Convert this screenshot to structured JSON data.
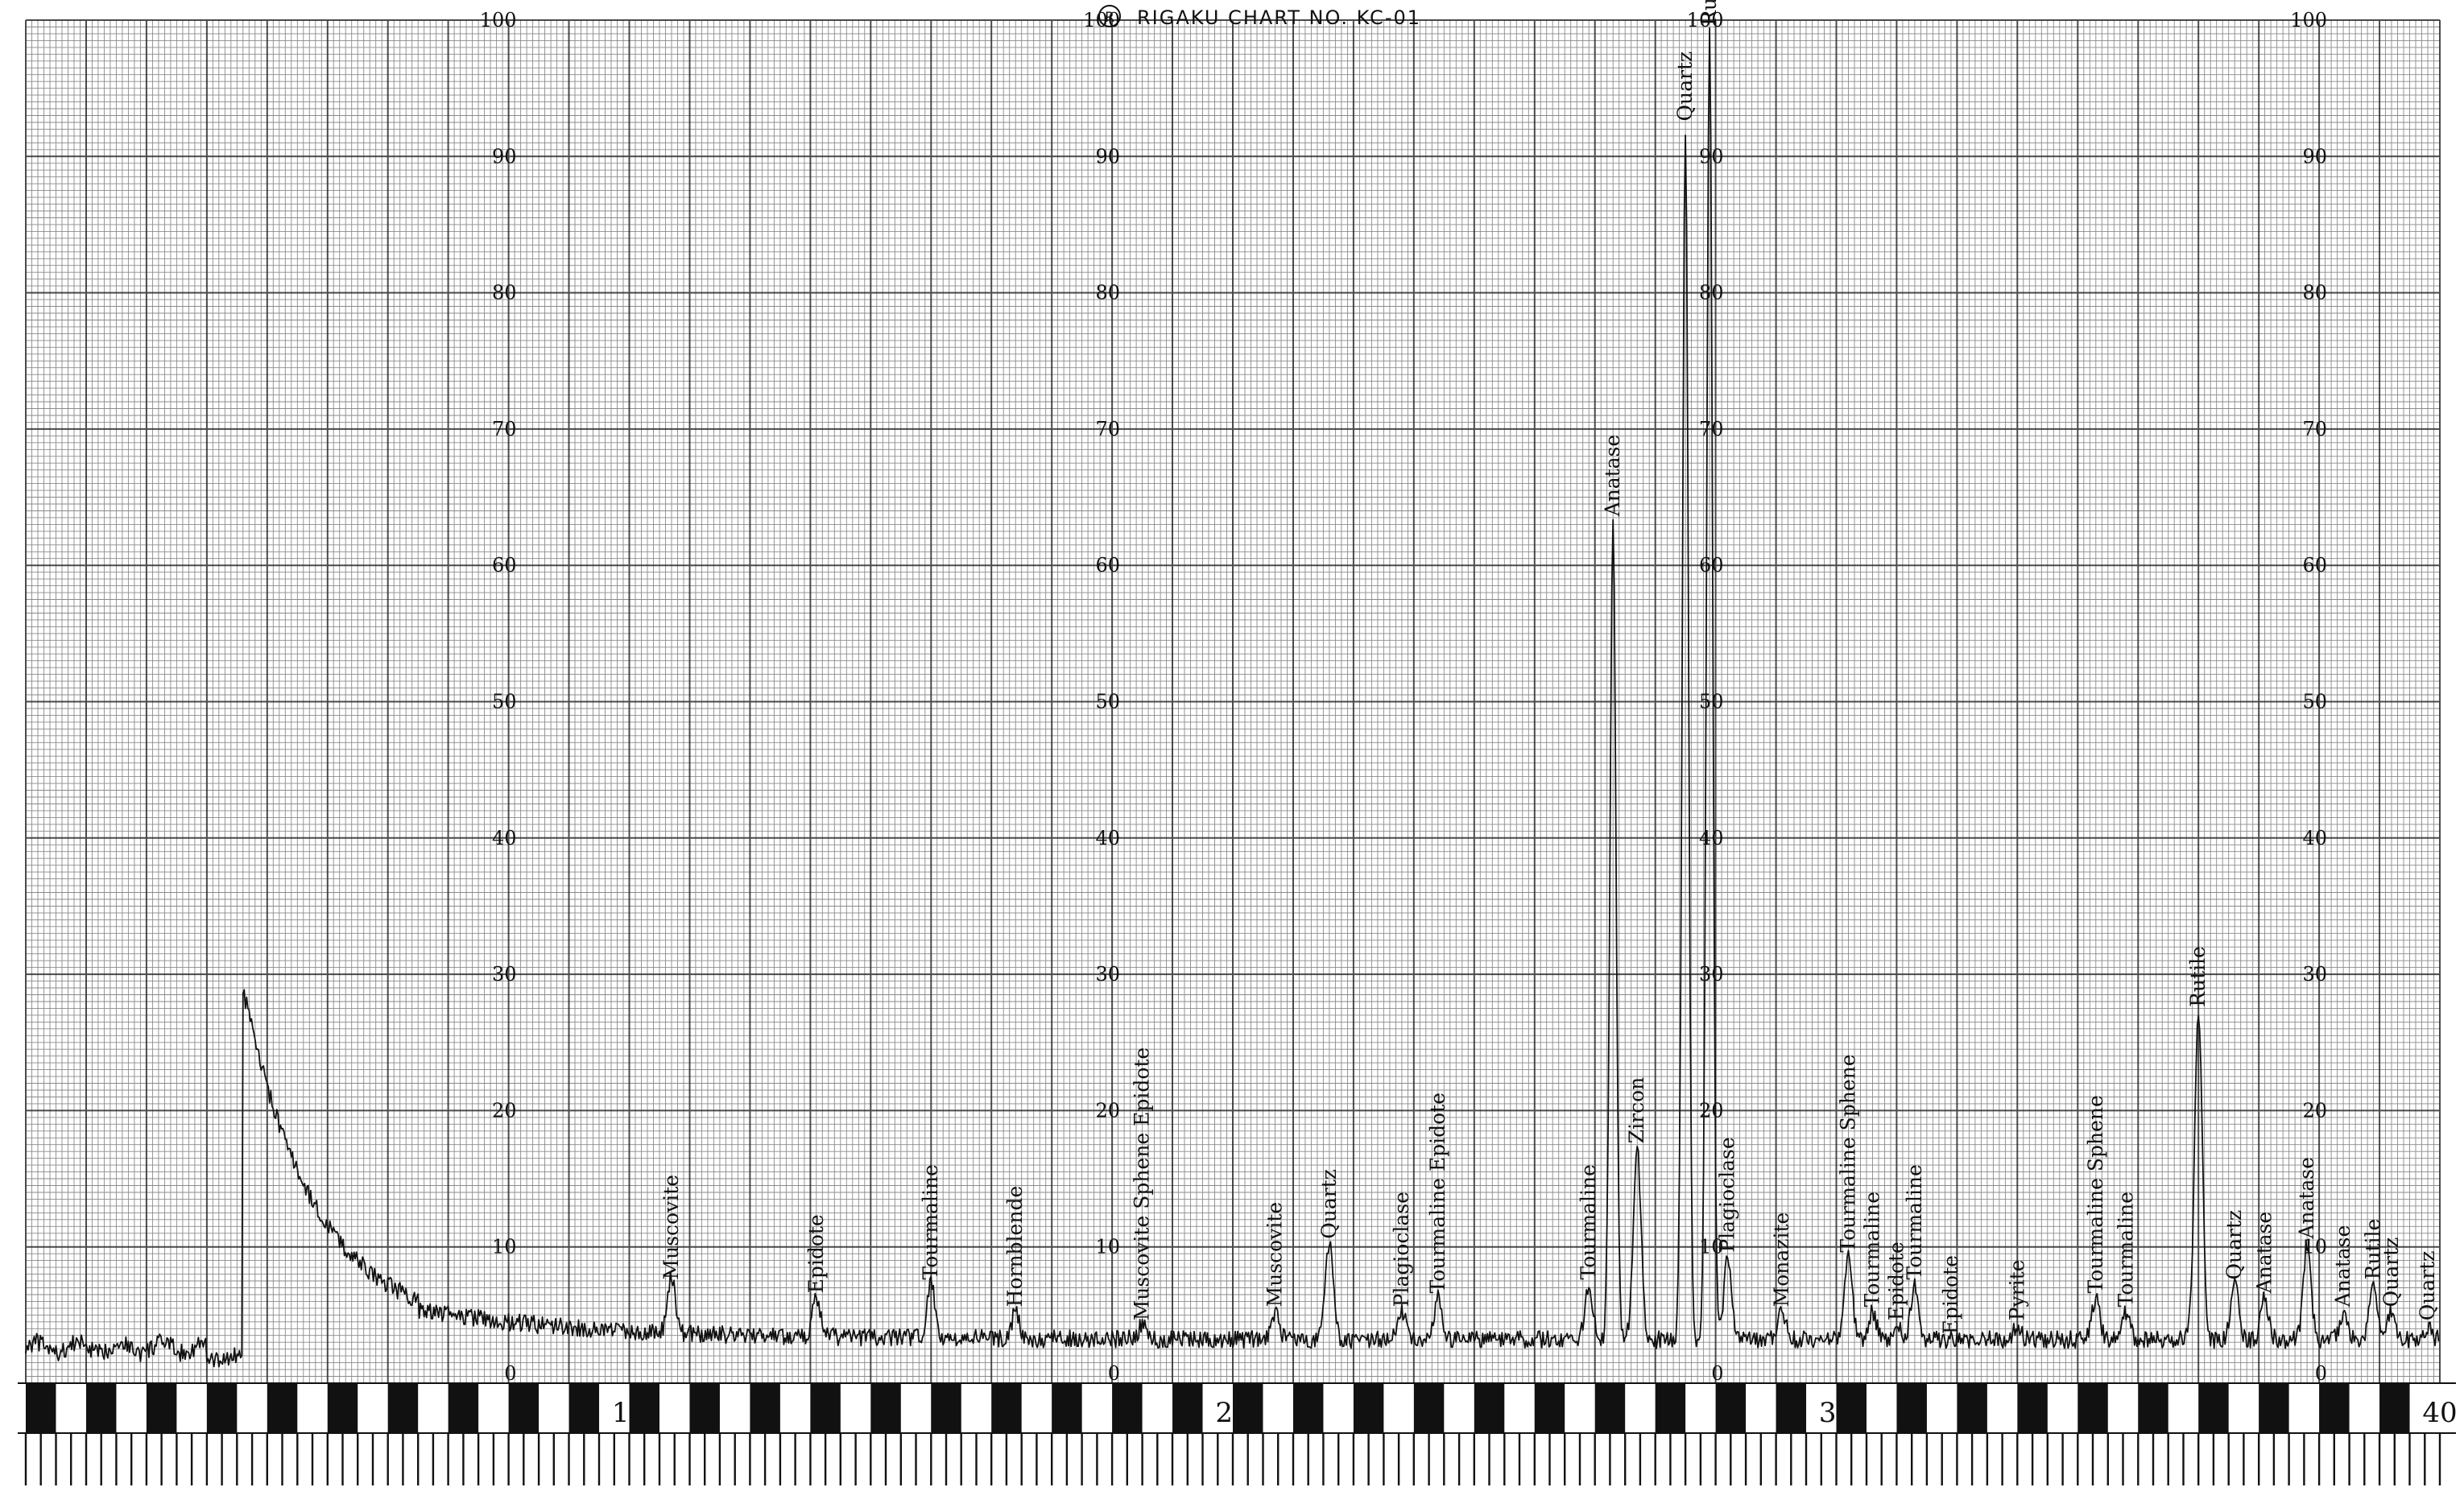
{
  "header": {
    "title": "RIGAKU CHART NO. KC-01",
    "logo_glyph": "R"
  },
  "colors": {
    "paper": "#ffffff",
    "grid": "#2a2a2a",
    "ink": "#111111"
  },
  "chart_data": {
    "type": "line",
    "grid": true,
    "x_axis": {
      "range": [
        0,
        40
      ],
      "labels": [
        "10",
        "20",
        "30",
        "40"
      ],
      "label_values": [
        10,
        20,
        30,
        40
      ]
    },
    "y_axis": {
      "range": [
        0,
        100
      ],
      "labels": [
        "0",
        "10",
        "20",
        "30",
        "40",
        "50",
        "60",
        "70",
        "80",
        "90",
        "100"
      ]
    },
    "peaks": [
      {
        "x": 10.7,
        "y": 7,
        "label": "Muscovite"
      },
      {
        "x": 13.1,
        "y": 6,
        "label": "Epidote"
      },
      {
        "x": 15.0,
        "y": 7,
        "label": "Tourmaline"
      },
      {
        "x": 16.4,
        "y": 5,
        "label": "Hornblende"
      },
      {
        "x": 18.5,
        "y": 4,
        "label": "Muscovite Sphene Epidote"
      },
      {
        "x": 20.7,
        "y": 5,
        "label": "Muscovite"
      },
      {
        "x": 21.6,
        "y": 10,
        "label": "Quartz"
      },
      {
        "x": 22.8,
        "y": 5,
        "label": "Plagioclase"
      },
      {
        "x": 23.4,
        "y": 6,
        "label": "Tourmaline Epidote"
      },
      {
        "x": 25.9,
        "y": 7,
        "label": "Tourmaline"
      },
      {
        "x": 26.3,
        "y": 63,
        "label": "Anatase"
      },
      {
        "x": 26.7,
        "y": 17,
        "label": "Zircon"
      },
      {
        "x": 27.5,
        "y": 92,
        "label": "Quartz"
      },
      {
        "x": 27.9,
        "y": 99,
        "label": "Rutile Sphene"
      },
      {
        "x": 28.2,
        "y": 9,
        "label": "Plagioclase"
      },
      {
        "x": 29.1,
        "y": 5,
        "label": "Monazite"
      },
      {
        "x": 30.2,
        "y": 9,
        "label": "Tourmaline Sphene"
      },
      {
        "x": 30.6,
        "y": 5,
        "label": "Tourmaline"
      },
      {
        "x": 31.0,
        "y": 4,
        "label": "Epidote"
      },
      {
        "x": 31.3,
        "y": 7,
        "label": "Tourmaline"
      },
      {
        "x": 31.9,
        "y": 3,
        "label": "Epidote"
      },
      {
        "x": 33.0,
        "y": 4,
        "label": "Pyrite"
      },
      {
        "x": 34.3,
        "y": 6,
        "label": "Tourmaline Sphene"
      },
      {
        "x": 34.8,
        "y": 5,
        "label": "Tourmaline"
      },
      {
        "x": 36.0,
        "y": 27,
        "label": "Rutile"
      },
      {
        "x": 36.6,
        "y": 7,
        "label": "Quartz"
      },
      {
        "x": 37.1,
        "y": 6,
        "label": "Anatase"
      },
      {
        "x": 37.8,
        "y": 10,
        "label": "Anatase"
      },
      {
        "x": 38.4,
        "y": 5,
        "label": "Anatase"
      },
      {
        "x": 38.9,
        "y": 7,
        "label": "Rutile"
      },
      {
        "x": 39.2,
        "y": 5,
        "label": "Quartz"
      },
      {
        "x": 39.8,
        "y": 4,
        "label": "Quartz"
      }
    ]
  }
}
